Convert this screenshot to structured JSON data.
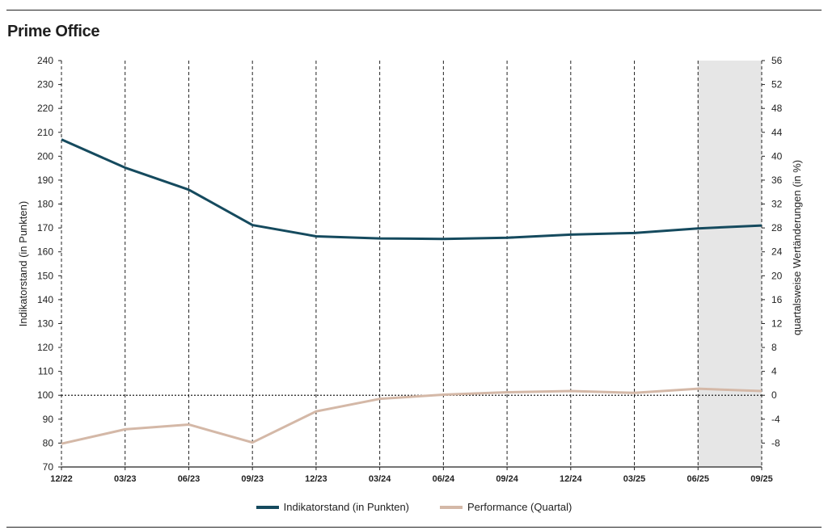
{
  "title": "Prime Office",
  "chart_data": {
    "type": "line",
    "categories": [
      "12/22",
      "03/23",
      "06/23",
      "09/23",
      "12/23",
      "03/24",
      "06/24",
      "09/24",
      "12/24",
      "03/25",
      "06/25",
      "09/25"
    ],
    "series": [
      {
        "name": "Indikatorstand (in Punkten)",
        "axis": "left",
        "color": "#154a5e",
        "values": [
          207,
          195.2,
          186,
          171.2,
          166.5,
          165.6,
          165.4,
          165.9,
          167.2,
          167.9,
          169.8,
          171
        ]
      },
      {
        "name": "Performance (Quartal)",
        "axis": "right",
        "color": "#d4b8a7",
        "values": [
          -8.1,
          -5.7,
          -4.9,
          -7.9,
          -2.7,
          -0.6,
          0.1,
          0.5,
          0.7,
          0.4,
          1.1,
          0.7
        ]
      }
    ],
    "ylabel": "Indikatorstand (in Punkten)",
    "ylabel_right": "quartalsweise Wertänderungen (in %)",
    "ylim": [
      70,
      240
    ],
    "ylim_right": [
      -12,
      56
    ],
    "yticks": [
      70,
      80,
      90,
      100,
      110,
      120,
      130,
      140,
      150,
      160,
      170,
      180,
      190,
      200,
      210,
      220,
      230,
      240
    ],
    "yticks_right": [
      -8,
      -4,
      0,
      4,
      8,
      12,
      16,
      20,
      24,
      28,
      32,
      36,
      40,
      44,
      48,
      52,
      56
    ],
    "yticks_right_labels": [
      "-8",
      "-4",
      "0",
      "4",
      "8",
      "12",
      "16",
      "20",
      "24",
      "28",
      "32",
      "36",
      "40",
      "44",
      "48",
      "52",
      "56"
    ],
    "reference_line": 100,
    "shaded_categories": [
      "06/25",
      "09/25"
    ],
    "grid": "vertical dashed",
    "legend_position": "bottom"
  }
}
